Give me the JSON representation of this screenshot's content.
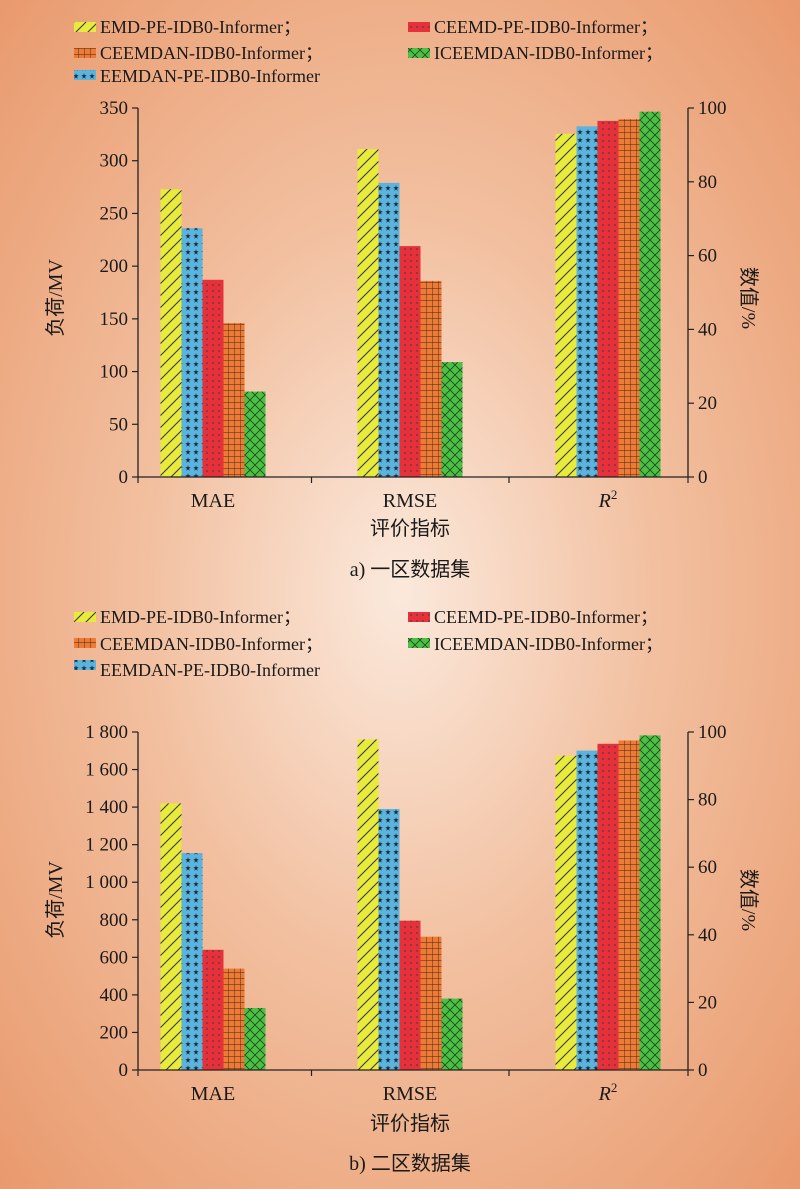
{
  "legend": [
    {
      "label": "EMD-PE-IDB0-Informer；",
      "color": "#e8ea3c",
      "pattern": "hatch"
    },
    {
      "label": "CEEMD-PE-IDB0-Informer；",
      "color": "#e8303a",
      "pattern": "dots"
    },
    {
      "label": "CEEMDAN-IDB0-Informer；",
      "color": "#ee7a34",
      "pattern": "grid"
    },
    {
      "label": "ICEEMDAN-IDB0-Informer；",
      "color": "#4cbf45",
      "pattern": "cross"
    },
    {
      "label": "EEMDAN-PE-IDB0-Informer",
      "color": "#5ab4de",
      "pattern": "stars"
    }
  ],
  "chart_data": [
    {
      "type": "bar",
      "title": "a) 一区数据集",
      "xlabel": "评价指标",
      "ylabel": "负荷/MV",
      "y2label": "数值/%",
      "categories": [
        "MAE",
        "RMSE",
        "R2"
      ],
      "category_labels": [
        "MAE",
        "RMSE",
        "R"
      ],
      "ylim": [
        0,
        350
      ],
      "yticks": [
        0,
        50,
        100,
        150,
        200,
        250,
        300,
        350
      ],
      "ytick_labels": [
        "0",
        "50",
        "100",
        "150",
        "200",
        "250",
        "300",
        "350"
      ],
      "y2lim": [
        0,
        100
      ],
      "y2ticks": [
        0,
        20,
        40,
        60,
        80,
        100
      ],
      "series": [
        {
          "name": "EMD-PE-IDB0-Informer",
          "values": [
            273,
            311,
            93
          ]
        },
        {
          "name": "EEMDAN-PE-IDB0-Informer",
          "values": [
            236,
            279,
            95
          ]
        },
        {
          "name": "CEEMD-PE-IDB0-Informer",
          "values": [
            187,
            219,
            96.5
          ]
        },
        {
          "name": "CEEMDAN-IDB0-Informer",
          "values": [
            146,
            186,
            97
          ]
        },
        {
          "name": "ICEEMDAN-IDB0-Informer",
          "values": [
            81,
            109,
            99
          ]
        }
      ],
      "secondary_axis_categories": [
        "R2"
      ]
    },
    {
      "type": "bar",
      "title": "b) 二区数据集",
      "xlabel": "评价指标",
      "ylabel": "负荷/MV",
      "y2label": "数值/%",
      "categories": [
        "MAE",
        "RMSE",
        "R2"
      ],
      "category_labels": [
        "MAE",
        "RMSE",
        "R"
      ],
      "ylim": [
        0,
        1800
      ],
      "yticks": [
        0,
        200,
        400,
        600,
        800,
        1000,
        1200,
        1400,
        1600,
        1800
      ],
      "ytick_labels": [
        "0",
        "200",
        "400",
        "600",
        "800",
        "1 000",
        "1 200",
        "1 400",
        "1 600",
        "1 800"
      ],
      "y2lim": [
        0,
        100
      ],
      "y2ticks": [
        0,
        20,
        40,
        60,
        80,
        100
      ],
      "series": [
        {
          "name": "EMD-PE-IDB0-Informer",
          "values": [
            1420,
            1760,
            93
          ]
        },
        {
          "name": "EEMDAN-PE-IDB0-Informer",
          "values": [
            1155,
            1390,
            94.5
          ]
        },
        {
          "name": "CEEMD-PE-IDB0-Informer",
          "values": [
            640,
            795,
            96.5
          ]
        },
        {
          "name": "CEEMDAN-IDB0-Informer",
          "values": [
            540,
            710,
            97.5
          ]
        },
        {
          "name": "ICEEMDAN-IDB0-Informer",
          "values": [
            330,
            380,
            99
          ]
        }
      ],
      "secondary_axis_categories": [
        "R2"
      ]
    }
  ]
}
